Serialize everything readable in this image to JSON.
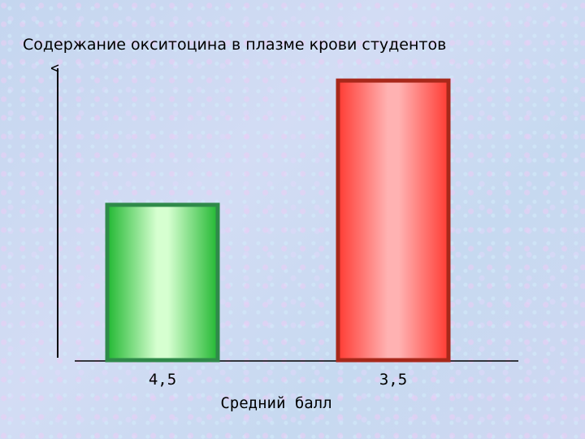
{
  "chart_data": {
    "type": "bar",
    "title": "Содержание окситоцина в плазме крови студентов",
    "xlabel": "Средний балл",
    "ylabel": "",
    "categories": [
      "4,5",
      "3,5"
    ],
    "values": [
      1.0,
      1.8
    ],
    "ylim": [
      0,
      1.9
    ],
    "grid": false,
    "legend": "none",
    "colors": {
      "bars": [
        {
          "border": "#2f8a4a",
          "edge": "#22b832",
          "center": "#d6ffd0"
        },
        {
          "border": "#a8281a",
          "edge": "#ff3b33",
          "center": "#ffb2b2"
        }
      ],
      "axis": "#000000"
    }
  }
}
